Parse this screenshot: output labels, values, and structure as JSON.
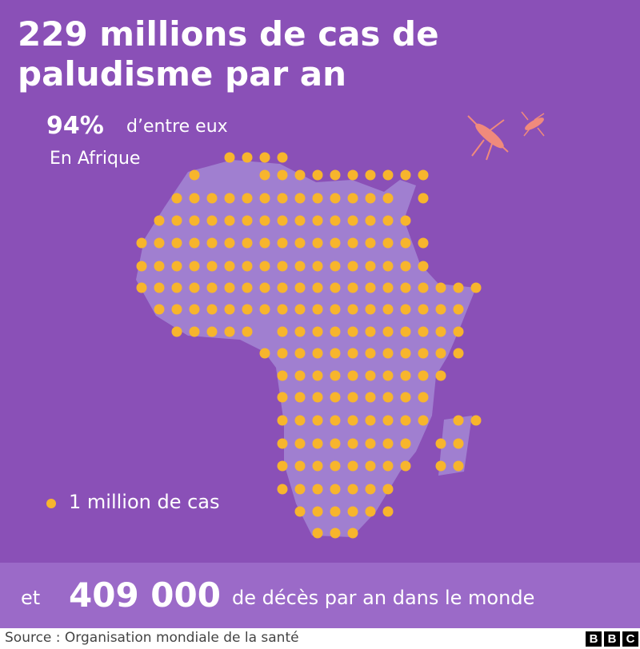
{
  "title_lines": [
    "229 millions de cas de",
    "paludisme par an"
  ],
  "share": {
    "value": "94%",
    "text": "d’entre eux",
    "region": "En Afrique"
  },
  "legend": "1 million de cas",
  "footer": {
    "prefix": "et",
    "value": "409 000",
    "text": "de décès par an dans le monde"
  },
  "source": "Source : Organisation mondiale de la santé",
  "logo": [
    "B",
    "B",
    "C"
  ]
}
